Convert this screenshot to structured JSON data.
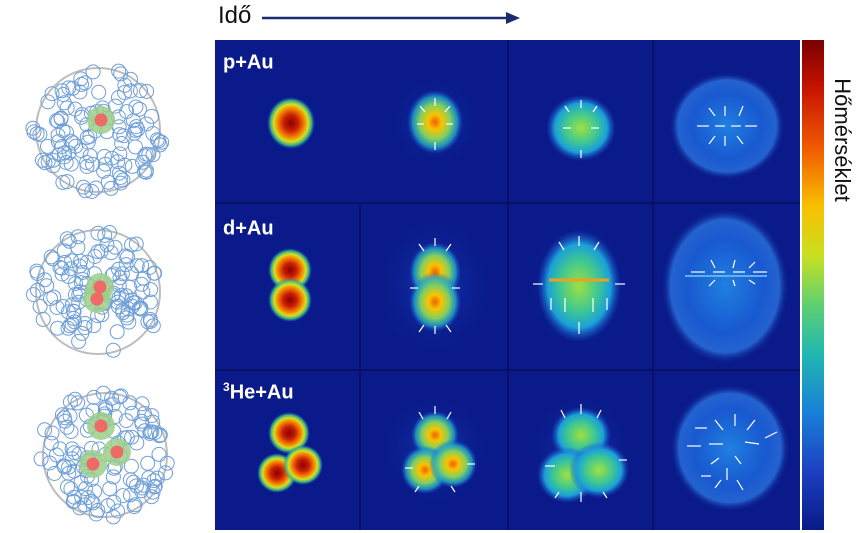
{
  "time_axis": {
    "label": "Idő"
  },
  "colorbar": {
    "label": "Hőmérséklet"
  },
  "rows": [
    {
      "label_sup": "",
      "label_text": "p+Au"
    },
    {
      "label_sup": "",
      "label_text": "d+Au"
    },
    {
      "label_sup": "3",
      "label_text": "He+Au"
    }
  ],
  "colors": {
    "panel_bg": "#0a1a8a",
    "nucleon_ring": "#6f9fd8",
    "nucleus_outline": "#bdbdbd",
    "projectile_glow": "#9ccf8a",
    "projectile_core": "#ef6a66",
    "arrow": "#1c2a6e"
  }
}
